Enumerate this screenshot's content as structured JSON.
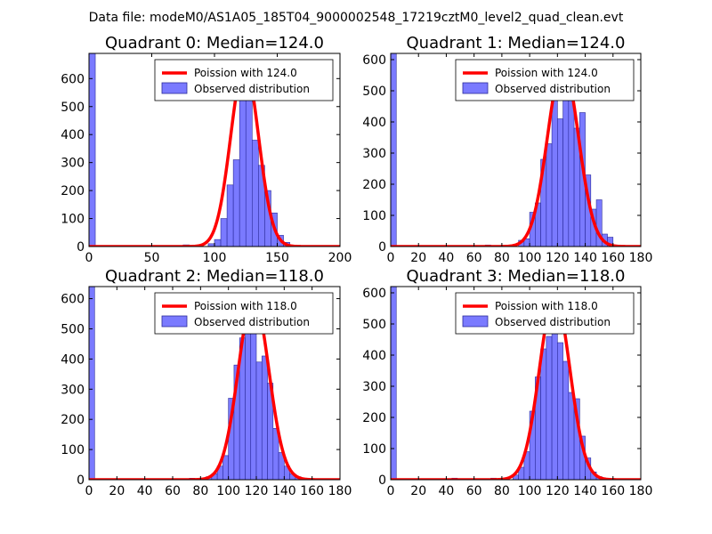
{
  "figure": {
    "suptitle": "Data file: modeM0/AS1A05_185T04_9000002548_17219cztM0_level2_quad_clean.evt"
  },
  "colors": {
    "hist_fill": "#7a7aff",
    "hist_edge": "#2a2a9a",
    "curve": "#ff0000",
    "background": "#ffffff"
  },
  "chart_data": [
    {
      "type": "bar",
      "title": "Quadrant 0: Median=124.0",
      "xlim": [
        0,
        200
      ],
      "ylim": [
        0,
        690
      ],
      "xticks": [
        0,
        50,
        100,
        150,
        200
      ],
      "yticks": [
        0,
        100,
        200,
        300,
        400,
        500,
        600
      ],
      "bin_width": 5,
      "bins": [
        [
          0,
          690
        ],
        [
          75,
          6
        ],
        [
          95,
          10
        ],
        [
          100,
          25
        ],
        [
          105,
          100
        ],
        [
          110,
          220
        ],
        [
          115,
          310
        ],
        [
          120,
          630
        ],
        [
          125,
          540
        ],
        [
          130,
          380
        ],
        [
          135,
          290
        ],
        [
          140,
          200
        ],
        [
          145,
          120
        ],
        [
          150,
          40
        ],
        [
          155,
          15
        ],
        [
          160,
          5
        ]
      ],
      "curve_name": "Poission with 124.0",
      "curve": {
        "mean": 124,
        "peak": 650,
        "sigma": 11.1
      },
      "legend": [
        "Poission with 124.0",
        "Observed distribution"
      ]
    },
    {
      "type": "bar",
      "title": "Quadrant 1: Median=124.0",
      "xlim": [
        0,
        180
      ],
      "ylim": [
        0,
        620
      ],
      "xticks": [
        0,
        20,
        40,
        60,
        80,
        100,
        120,
        140,
        160,
        180
      ],
      "yticks": [
        0,
        100,
        200,
        300,
        400,
        500,
        600
      ],
      "bin_width": 4,
      "bins": [
        [
          0,
          620
        ],
        [
          68,
          5
        ],
        [
          92,
          20
        ],
        [
          96,
          25
        ],
        [
          100,
          110
        ],
        [
          104,
          140
        ],
        [
          108,
          280
        ],
        [
          112,
          330
        ],
        [
          116,
          480
        ],
        [
          120,
          410
        ],
        [
          124,
          520
        ],
        [
          128,
          580
        ],
        [
          132,
          380
        ],
        [
          136,
          430
        ],
        [
          140,
          230
        ],
        [
          144,
          120
        ],
        [
          148,
          150
        ],
        [
          152,
          40
        ],
        [
          156,
          30
        ]
      ],
      "curve_name": "Poission with 124.0",
      "curve": {
        "mean": 124,
        "peak": 585,
        "sigma": 11.1
      },
      "legend": [
        "Poission with 124.0",
        "Observed distribution"
      ]
    },
    {
      "type": "bar",
      "title": "Quadrant 2: Median=118.0",
      "xlim": [
        0,
        180
      ],
      "ylim": [
        0,
        640
      ],
      "xticks": [
        0,
        20,
        40,
        60,
        80,
        100,
        120,
        140,
        160,
        180
      ],
      "yticks": [
        0,
        100,
        200,
        300,
        400,
        500,
        600
      ],
      "bin_width": 4,
      "bins": [
        [
          0,
          640
        ],
        [
          72,
          5
        ],
        [
          84,
          10
        ],
        [
          88,
          20
        ],
        [
          92,
          45
        ],
        [
          96,
          80
        ],
        [
          100,
          270
        ],
        [
          104,
          380
        ],
        [
          108,
          470
        ],
        [
          112,
          500
        ],
        [
          116,
          520
        ],
        [
          120,
          390
        ],
        [
          124,
          410
        ],
        [
          128,
          320
        ],
        [
          132,
          170
        ],
        [
          136,
          90
        ],
        [
          140,
          45
        ],
        [
          144,
          20
        ],
        [
          148,
          10
        ]
      ],
      "curve_name": "Poission with 118.0",
      "curve": {
        "mean": 118,
        "peak": 605,
        "sigma": 10.9
      },
      "legend": [
        "Poission with 118.0",
        "Observed distribution"
      ]
    },
    {
      "type": "bar",
      "title": "Quadrant 3: Median=118.0",
      "xlim": [
        0,
        180
      ],
      "ylim": [
        0,
        620
      ],
      "xticks": [
        0,
        20,
        40,
        60,
        80,
        100,
        120,
        140,
        160,
        180
      ],
      "yticks": [
        0,
        100,
        200,
        300,
        400,
        500,
        600
      ],
      "bin_width": 4,
      "bins": [
        [
          0,
          620
        ],
        [
          44,
          5
        ],
        [
          72,
          5
        ],
        [
          88,
          15
        ],
        [
          92,
          40
        ],
        [
          96,
          90
        ],
        [
          100,
          220
        ],
        [
          104,
          330
        ],
        [
          108,
          420
        ],
        [
          112,
          460
        ],
        [
          116,
          590
        ],
        [
          120,
          440
        ],
        [
          124,
          380
        ],
        [
          128,
          280
        ],
        [
          132,
          260
        ],
        [
          136,
          140
        ],
        [
          140,
          70
        ],
        [
          144,
          25
        ],
        [
          148,
          10
        ]
      ],
      "curve_name": "Poission with 118.0",
      "curve": {
        "mean": 118,
        "peak": 590,
        "sigma": 10.9
      },
      "legend": [
        "Poission with 118.0",
        "Observed distribution"
      ]
    }
  ]
}
